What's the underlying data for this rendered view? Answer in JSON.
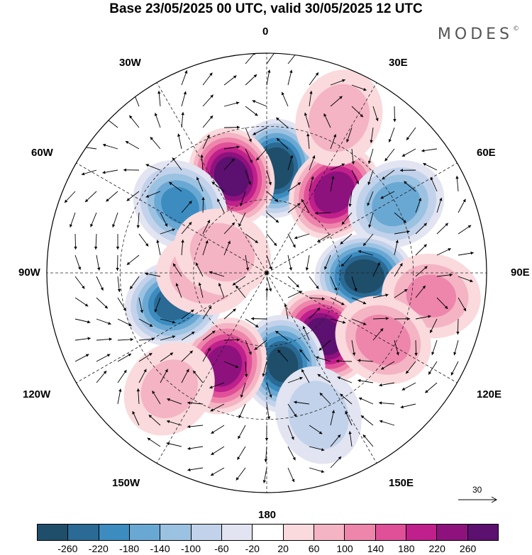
{
  "title": "Base 23/05/2025 00 UTC, valid 30/05/2025 12 UTC",
  "brand": "MODES",
  "brand_mark": "©",
  "longitude_labels": {
    "top": "0",
    "bottom": "180",
    "left": "90W",
    "right": "90E",
    "nw_upper": "30W",
    "nw_lower": "60W",
    "ne_upper": "30E",
    "ne_lower": "60E",
    "sw_upper": "120W",
    "sw_lower": "150W",
    "se_upper": "120E",
    "se_lower": "150E"
  },
  "vector_reference": {
    "label": "30",
    "icon": "arrow-right-icon"
  },
  "colorbar": {
    "colors": [
      "#1f4e6b",
      "#2a6a94",
      "#3d8cc0",
      "#6aa8d4",
      "#9cc2e2",
      "#c2d2ea",
      "#e2e4f2",
      "#ffffff",
      "#fadadd",
      "#f4b4c4",
      "#ee86ac",
      "#e05098",
      "#c0208c",
      "#8e127e",
      "#5c1070"
    ],
    "ticks": [
      "-260",
      "-220",
      "-180",
      "-140",
      "-100",
      "-60",
      "-20",
      "20",
      "60",
      "100",
      "140",
      "180",
      "220",
      "260"
    ]
  },
  "anomaly_centers": [
    {
      "lon": 5,
      "lat": 47,
      "value": -290
    },
    {
      "lon": -20,
      "lat": 48,
      "value": 280
    },
    {
      "lon": -52,
      "lat": 45,
      "value": -180
    },
    {
      "lon": 40,
      "lat": 47,
      "value": 250
    },
    {
      "lon": 62,
      "lat": 30,
      "value": -160
    },
    {
      "lon": 92,
      "lat": 50,
      "value": -280
    },
    {
      "lon": 98,
      "lat": 22,
      "value": 100
    },
    {
      "lon": 138,
      "lat": 55,
      "value": 280
    },
    {
      "lon": 170,
      "lat": 52,
      "value": -260
    },
    {
      "lon": -155,
      "lat": 48,
      "value": 240
    },
    {
      "lon": -108,
      "lat": 50,
      "value": -230
    },
    {
      "lon": -90,
      "lat": 65,
      "value": 90
    },
    {
      "lon": -65,
      "lat": 70,
      "value": 70
    },
    {
      "lon": 25,
      "lat": 20,
      "value": 80
    },
    {
      "lon": 160,
      "lat": 28,
      "value": -80
    },
    {
      "lon": -140,
      "lat": 28,
      "value": 60
    },
    {
      "lon": 120,
      "lat": 35,
      "value": 120
    }
  ]
}
